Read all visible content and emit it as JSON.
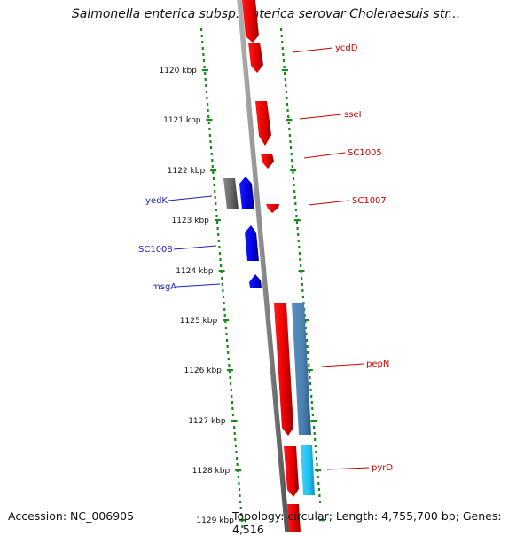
{
  "title": "Salmonella enterica subsp. enterica serovar Choleraesuis str...",
  "footer": {
    "accession": "Accession: NC_006905",
    "topology": "Topology: circular; Length: 4,755,700 bp; Genes: 4,516"
  },
  "scale_labels": [
    "1120 kbp",
    "1121 kbp",
    "1122 kbp",
    "1123 kbp",
    "1124 kbp",
    "1125 kbp",
    "1126 kbp",
    "1127 kbp",
    "1128 kbp",
    "1129 kbp"
  ],
  "gene_labels_right": [
    "ycdD",
    "sseI",
    "SC1005",
    "SC1007",
    "pepN",
    "pyrD"
  ],
  "gene_labels_left": [
    "yedK",
    "SC1008",
    "msgA"
  ],
  "colors": {
    "forward_gene": "#ff0000",
    "reverse_gene": "#0000ee",
    "other_gene": "#666666",
    "steel_gene": "#4a80b0",
    "cyan_gene": "#22c4f0",
    "backbone": "#888888",
    "tick": "#1a8a1a"
  }
}
